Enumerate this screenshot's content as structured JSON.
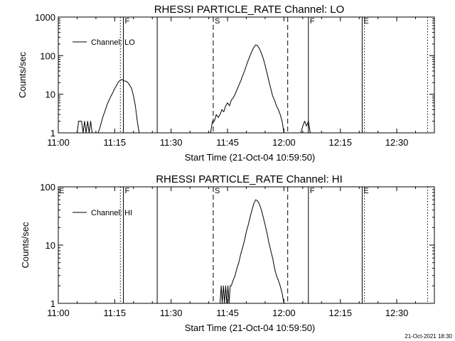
{
  "chart_data": [
    {
      "type": "line",
      "title": "RHESSI PARTICLE_RATE Channel: LO",
      "ylabel": "Counts/sec",
      "xlabel": "Start Time (21-Oct-04 10:59:50)",
      "yscale": "log",
      "ylim": [
        1,
        1000
      ],
      "xlim_minutes": [
        0,
        100
      ],
      "xticks": [
        {
          "t": 0,
          "label": "11:00"
        },
        {
          "t": 15,
          "label": "11:15"
        },
        {
          "t": 30,
          "label": "11:30"
        },
        {
          "t": 45,
          "label": "11:45"
        },
        {
          "t": 60,
          "label": "12:00"
        },
        {
          "t": 75,
          "label": "12:15"
        },
        {
          "t": 90,
          "label": "12:30"
        }
      ],
      "yticks": [
        {
          "v": 1,
          "label": "1"
        },
        {
          "v": 10,
          "label": "10"
        },
        {
          "v": 100,
          "label": "100"
        },
        {
          "v": 1000,
          "label": "1000"
        }
      ],
      "legend": "Channel: LO",
      "series": [
        {
          "name": "Channel: LO",
          "x": [
            5.0,
            5.4,
            5.8,
            6.2,
            6.6,
            7.0,
            7.4,
            7.8,
            8.2,
            8.6,
            9.0,
            9.4,
            9.8,
            10.2,
            10.6,
            11.0,
            11.4,
            11.8,
            12.2,
            12.6,
            13.0,
            13.5,
            14.0,
            14.5,
            15.0,
            15.5,
            16.0,
            16.5,
            17.0,
            17.5,
            18.0,
            18.5,
            19.0,
            19.5,
            20.0,
            20.5,
            21.0,
            21.5,
            22.0,
            22.5,
            23.0,
            23.5,
            24.0,
            24.5,
            25.0,
            25.5,
            26.0,
            26.5,
            27.0,
            27.5,
            28.0,
            28.5,
            29.0,
            29.5,
            30.0,
            30.5,
            31.0,
            31.5,
            32.0,
            32.5,
            33.0,
            33.5,
            34.0,
            34.5,
            35.0,
            35.5,
            36.0,
            36.5,
            37.0,
            37.5,
            38.0,
            38.5,
            39.0,
            39.5,
            40.0,
            40.5,
            41.0,
            41.5,
            42.0,
            42.5,
            43.0,
            43.5,
            44.0,
            44.5,
            45.0,
            45.5,
            46.0,
            46.5,
            47.0,
            47.5,
            48.0,
            48.5,
            49.0,
            49.5,
            50.0,
            50.5,
            51.0,
            51.5,
            52.0,
            52.5,
            53.0,
            53.5,
            54.0,
            54.5,
            55.0,
            55.5,
            56.0,
            56.5,
            57.0,
            57.5,
            58.0,
            58.5,
            59.0,
            59.5,
            60.0,
            60.5,
            61.0,
            61.5,
            62.0,
            62.5,
            63.0,
            63.5,
            64.0,
            64.5,
            65.0,
            65.5,
            66.0,
            66.5,
            67.0,
            67.5,
            68.0,
            68.5
          ],
          "y": [
            1,
            2,
            2,
            2,
            1,
            2,
            1,
            2,
            1,
            2,
            1,
            1,
            1,
            1,
            1,
            1.3,
            1.8,
            2.5,
            3.2,
            4.2,
            5.5,
            7.0,
            9.0,
            11,
            14,
            17,
            21,
            23,
            24,
            22,
            22,
            20,
            17,
            14,
            9,
            5,
            2,
            1,
            1,
            1,
            1,
            1,
            1,
            1,
            1,
            1,
            1,
            1,
            1,
            1,
            1,
            1,
            1,
            1,
            1,
            1,
            1,
            1,
            1,
            1,
            1,
            1,
            1,
            1,
            1,
            1,
            1,
            1,
            1,
            1,
            1,
            1,
            1,
            1,
            1,
            1,
            2,
            2,
            3,
            2.5,
            3,
            4,
            3.5,
            5,
            6,
            5,
            7,
            8,
            10,
            13,
            17,
            22,
            30,
            40,
            55,
            75,
            100,
            130,
            165,
            190,
            180,
            150,
            115,
            85,
            55,
            35,
            22,
            14,
            9,
            7,
            5,
            4,
            3,
            2,
            1,
            1,
            1,
            1,
            1,
            1,
            1,
            1,
            1,
            1,
            1.5,
            2,
            1.5,
            2,
            1,
            1,
            1,
            1
          ]
        }
      ],
      "time_markers": [
        {
          "t": 16.5,
          "style": "dotted",
          "label": ""
        },
        {
          "t": 17.3,
          "style": "solid",
          "label": "F"
        },
        {
          "t": 26.3,
          "style": "solid",
          "label": ""
        },
        {
          "t": 41.2,
          "style": "dashed",
          "label": "S"
        },
        {
          "t": 61.0,
          "style": "dashed",
          "label": ""
        },
        {
          "t": 66.5,
          "style": "solid",
          "label": "F"
        },
        {
          "t": 80.8,
          "style": "solid",
          "label": "E"
        },
        {
          "t": 81.4,
          "style": "dotted",
          "label": ""
        },
        {
          "t": 98.2,
          "style": "dotted",
          "label": ""
        }
      ]
    },
    {
      "type": "line",
      "title": "RHESSI PARTICLE_RATE Channel: HI",
      "ylabel": "Counts/sec",
      "xlabel": "Start Time (21-Oct-04 10:59:50)",
      "yscale": "log",
      "ylim": [
        1,
        100
      ],
      "xlim_minutes": [
        0,
        100
      ],
      "xticks": [
        {
          "t": 0,
          "label": "11:00"
        },
        {
          "t": 15,
          "label": "11:15"
        },
        {
          "t": 30,
          "label": "11:30"
        },
        {
          "t": 45,
          "label": "11:45"
        },
        {
          "t": 60,
          "label": "12:00"
        },
        {
          "t": 75,
          "label": "12:15"
        },
        {
          "t": 90,
          "label": "12:30"
        }
      ],
      "yticks": [
        {
          "v": 1,
          "label": "1"
        },
        {
          "v": 10,
          "label": "10"
        },
        {
          "v": 100,
          "label": "100"
        }
      ],
      "legend": "Channel: HI",
      "series": [
        {
          "name": "Channel: HI",
          "x": [
            43.0,
            43.3,
            43.6,
            43.9,
            44.2,
            44.5,
            44.8,
            45.1,
            45.4,
            45.7,
            46.0,
            46.5,
            47.0,
            47.5,
            48.0,
            48.5,
            49.0,
            49.5,
            50.0,
            50.5,
            51.0,
            51.5,
            52.0,
            52.5,
            53.0,
            53.5,
            54.0,
            54.5,
            55.0,
            55.5,
            56.0,
            56.5,
            57.0,
            57.5,
            58.0,
            58.5,
            59.0,
            59.5,
            60.0,
            60.5,
            61.0
          ],
          "y": [
            1,
            2,
            1,
            2,
            1,
            2,
            1,
            2,
            1,
            2,
            2,
            2.5,
            3,
            4,
            5,
            7,
            9,
            12,
            17,
            22,
            30,
            40,
            52,
            60,
            57,
            50,
            40,
            30,
            22,
            16,
            11,
            8,
            6,
            4,
            3,
            2.5,
            2,
            1.5,
            1,
            1,
            1
          ]
        }
      ],
      "time_markers": [
        {
          "t": 16.5,
          "style": "dotted",
          "label": ""
        },
        {
          "t": 17.3,
          "style": "solid",
          "label": "F"
        },
        {
          "t": 26.3,
          "style": "solid",
          "label": ""
        },
        {
          "t": 41.2,
          "style": "dashed",
          "label": "S"
        },
        {
          "t": 61.0,
          "style": "dashed",
          "label": ""
        },
        {
          "t": 66.5,
          "style": "solid",
          "label": "F"
        },
        {
          "t": 80.8,
          "style": "solid",
          "label": "E"
        },
        {
          "t": 81.4,
          "style": "dotted",
          "label": ""
        },
        {
          "t": 98.2,
          "style": "dotted",
          "label": ""
        }
      ],
      "corner_label": "E"
    }
  ],
  "footer": {
    "timestamp": "21-Oct-2021 18:30"
  }
}
